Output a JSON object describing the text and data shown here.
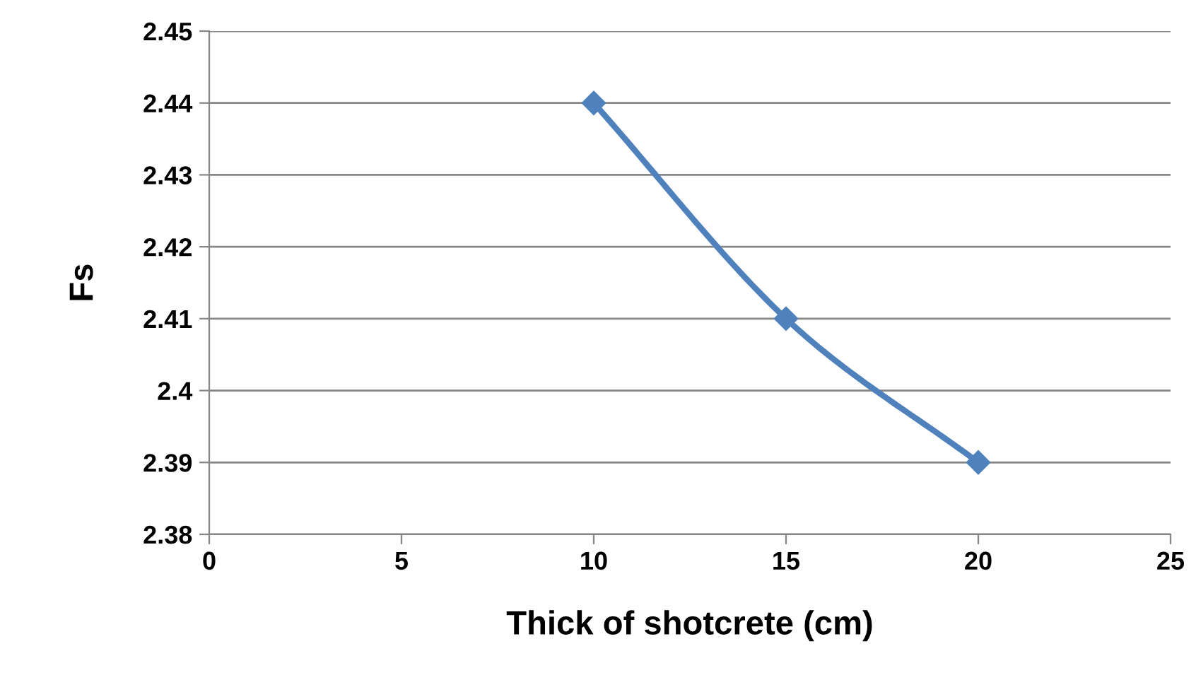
{
  "chart_data": {
    "type": "line",
    "xlabel": "Thick of shotcrete (cm)",
    "ylabel": "Fs",
    "series": [
      {
        "color": "#4f81bd",
        "x": [
          10,
          15,
          20
        ],
        "values": [
          2.44,
          2.41,
          2.39
        ]
      }
    ],
    "xlim": [
      0,
      25
    ],
    "xticks": [
      0,
      5,
      10,
      15,
      20,
      25
    ],
    "ylim": [
      2.38,
      2.45
    ],
    "yticks": [
      2.38,
      2.39,
      2.4,
      2.41,
      2.42,
      2.43,
      2.44,
      2.45
    ],
    "grid": "y",
    "marker": "diamond",
    "line_style": "solid"
  }
}
